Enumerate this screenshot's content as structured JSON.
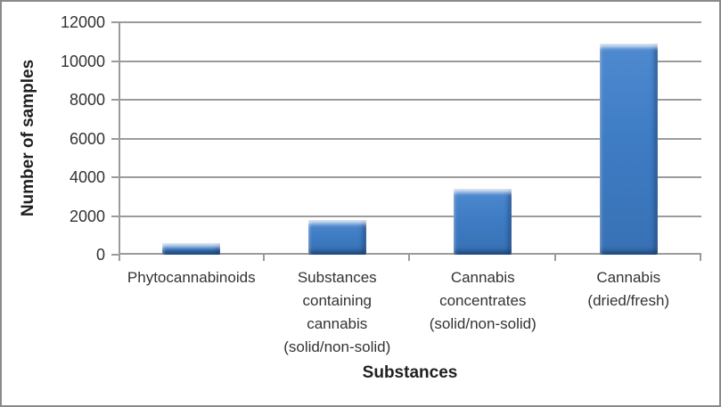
{
  "frame": {
    "background": "#ffffff",
    "border_color": "#8a8a8a"
  },
  "chart_data": {
    "type": "bar",
    "title": "",
    "xlabel": "Substances",
    "ylabel": "Number of samples",
    "categories": [
      "Phytocannabinoids",
      "Substances containing cannabis (solid/non-solid)",
      "Cannabis concentrates (solid/non-solid)",
      "Cannabis (dried/fresh)"
    ],
    "category_lines": [
      [
        "Phytocannabinoids"
      ],
      [
        "Substances",
        "containing",
        "cannabis",
        "(solid/non-solid)"
      ],
      [
        "Cannabis",
        "concentrates",
        "(solid/non-solid)"
      ],
      [
        "Cannabis",
        "(dried/fresh)"
      ]
    ],
    "values": [
      600,
      1800,
      3400,
      10900
    ],
    "ylim": [
      0,
      12000
    ],
    "yticks": [
      0,
      2000,
      4000,
      6000,
      8000,
      10000,
      12000
    ],
    "grid": true,
    "legend": false,
    "bar_color": "#3e7cc4",
    "bar_bevel_highlight": "#a8d4f5",
    "bar_bevel_shadow": "#2b5c99",
    "gridline_color": "#9b9b9b",
    "axis_color": "#9b9b9b",
    "tick_label_color": "#333333",
    "axis_title_color": "#1f1f1f"
  }
}
